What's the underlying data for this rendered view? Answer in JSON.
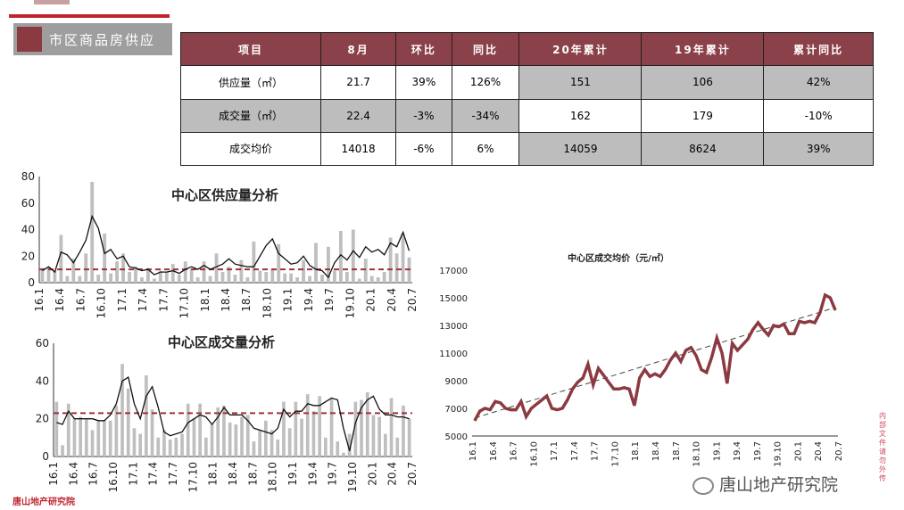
{
  "section": {
    "title": "市区商品房供应"
  },
  "table": {
    "headers": [
      "项目",
      "8月",
      "环比",
      "同比",
      "20年累计",
      "19年累计",
      "累计同比"
    ],
    "rows": [
      [
        "供应量（㎡）",
        "21.7",
        "39%",
        "126%",
        "151",
        "106",
        "42%"
      ],
      [
        "成交量（㎡）",
        "22.4",
        "-3%",
        "-34%",
        "162",
        "179",
        "-10%"
      ],
      [
        "成交均价",
        "14018",
        "-6%",
        "6%",
        "14059",
        "8624",
        "39%"
      ]
    ]
  },
  "watermark": {
    "text": "唐山地产研究院"
  },
  "side_note": {
    "text": "内部文件 请勿外传"
  },
  "footer_logo": {
    "text": "唐山地产研究院"
  },
  "colors": {
    "accent": "#8b4149",
    "line_red": "#8b3a42",
    "bar_gray": "#bfbfbf",
    "avg_dash": "#a03040"
  },
  "chart_data": [
    {
      "type": "bar",
      "title": "中心区供应量分析",
      "ylim": [
        0,
        80
      ],
      "yticks": [
        0,
        20,
        40,
        60,
        80
      ],
      "xtick_labels": [
        "16.1",
        "16.4",
        "16.7",
        "16.10",
        "17.1",
        "17.4",
        "17.7",
        "17.10",
        "18.1",
        "18.4",
        "18.7",
        "18.10",
        "19.1",
        "19.4",
        "19.7",
        "19.10",
        "20.1",
        "20.4",
        "20.7"
      ],
      "series": [
        {
          "type": "bar",
          "values": [
            11,
            12,
            9,
            36,
            5,
            18,
            5,
            22,
            76,
            6,
            37,
            7,
            16,
            22,
            8,
            12,
            4,
            11,
            3,
            9,
            8,
            14,
            6,
            16,
            10,
            4,
            16,
            5,
            22,
            8,
            12,
            6,
            17,
            4,
            31,
            9,
            8,
            10,
            29,
            7,
            7,
            4,
            17,
            5,
            30,
            6,
            27,
            9,
            39,
            8,
            40,
            3,
            18,
            5,
            4,
            8,
            34,
            22,
            37,
            19
          ]
        },
        {
          "type": "line",
          "values": [
            9,
            12,
            8,
            23,
            21,
            15,
            23,
            32,
            50,
            41,
            22,
            25,
            18,
            20,
            12,
            11,
            9,
            10,
            6,
            8,
            8,
            9,
            7,
            10,
            12,
            10,
            13,
            10,
            12,
            14,
            18,
            14,
            13,
            12,
            12,
            20,
            28,
            33,
            22,
            18,
            14,
            15,
            20,
            13,
            10,
            9,
            4,
            15,
            21,
            17,
            24,
            19,
            27,
            23,
            25,
            21,
            30,
            27,
            38,
            24
          ]
        },
        {
          "type": "average",
          "value": 10
        }
      ]
    },
    {
      "type": "bar",
      "title": "中心区成交量分析",
      "ylim": [
        0,
        60
      ],
      "yticks": [
        0,
        20,
        40,
        60
      ],
      "xtick_labels": [
        "16.1",
        "16.4",
        "16.7",
        "16.10",
        "17.1",
        "17.4",
        "17.7",
        "17.10",
        "18.1",
        "18.4",
        "18.7",
        "18.10",
        "19.1",
        "19.4",
        "19.7",
        "19.10",
        "20.1",
        "20.4",
        "20.7"
      ],
      "series": [
        {
          "type": "bar",
          "values": [
            29,
            6,
            28,
            20,
            21,
            20,
            14,
            19,
            19,
            19,
            27,
            49,
            36,
            15,
            12,
            43,
            25,
            10,
            14,
            9,
            10,
            12,
            28,
            20,
            28,
            10,
            17,
            26,
            27,
            18,
            17,
            21,
            22,
            8,
            14,
            19,
            14,
            9,
            29,
            15,
            29,
            20,
            33,
            24,
            32,
            10,
            31,
            8,
            2,
            12,
            29,
            30,
            34,
            22,
            21,
            12,
            31,
            10,
            27,
            20
          ]
        },
        {
          "type": "line",
          "values": [
            18,
            17,
            24,
            20,
            20,
            20,
            20,
            19,
            19,
            22,
            28,
            40,
            42,
            28,
            20,
            32,
            37,
            26,
            13,
            11,
            12,
            13,
            18,
            20,
            22,
            21,
            17,
            21,
            26,
            22,
            22,
            22,
            19,
            15,
            14,
            13,
            12,
            15,
            25,
            21,
            24,
            24,
            28,
            27,
            27,
            29,
            31,
            30,
            15,
            3,
            18,
            26,
            30,
            32,
            25,
            22,
            22,
            21,
            21,
            20
          ]
        },
        {
          "type": "average",
          "value": 23
        }
      ]
    },
    {
      "type": "line",
      "title": "中心区成交均价（元/㎡）",
      "ylim": [
        5000,
        17000
      ],
      "yticks": [
        5000,
        7000,
        9000,
        11000,
        13000,
        15000,
        17000
      ],
      "xtick_labels": [
        "16.1",
        "16.4",
        "16.7",
        "16.10",
        "17.1",
        "17.4",
        "17.7",
        "17.10",
        "18.1",
        "18.4",
        "18.7",
        "18.10",
        "19.1",
        "19.4",
        "19.7",
        "19.10",
        "20.1",
        "20.4",
        "20.7"
      ],
      "series": [
        {
          "type": "line",
          "values": [
            6100,
            6800,
            7000,
            6900,
            7500,
            7400,
            7000,
            6900,
            6900,
            7500,
            6400,
            7000,
            7300,
            7600,
            7900,
            7000,
            6900,
            7000,
            7600,
            8400,
            8900,
            9200,
            10200,
            8700,
            9900,
            9400,
            8900,
            8400,
            8400,
            8500,
            8400,
            7200,
            9200,
            9800,
            9300,
            9500,
            9300,
            9800,
            10500,
            11000,
            10400,
            11200,
            11400,
            10800,
            9800,
            9600,
            10700,
            12100,
            11000,
            8800,
            11700,
            11200,
            11600,
            12000,
            12700,
            13200,
            12700,
            12300,
            13000,
            12900,
            13100,
            12400,
            12400,
            13300,
            13200,
            13300,
            13200,
            13900,
            15200,
            15000,
            14100
          ]
        },
        {
          "type": "trend",
          "values": [
            6300,
            14300
          ]
        }
      ]
    }
  ]
}
